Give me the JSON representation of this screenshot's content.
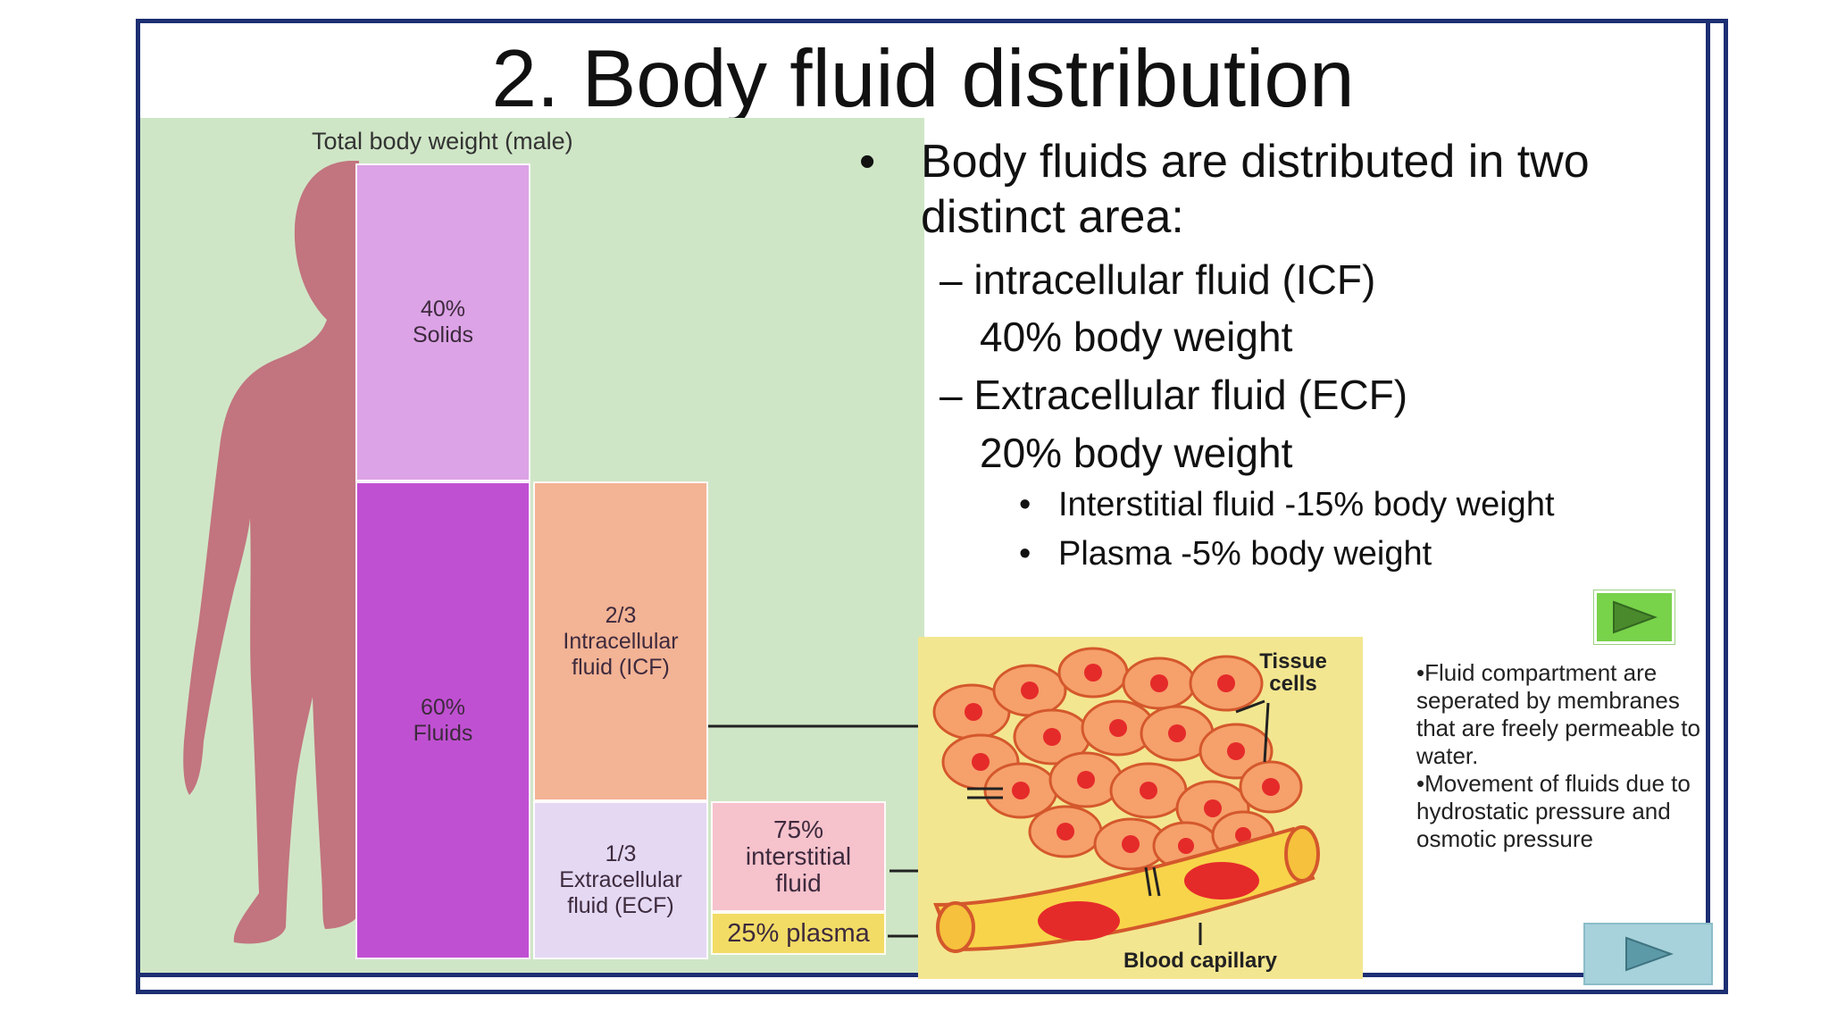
{
  "slide": {
    "title": "2. Body fluid distribution",
    "diagram": {
      "total_label": "Total body weight (male)",
      "solids": "40%\nSolids",
      "fluids": "60%\nFluids",
      "icf": "2/3\nIntracellular\nfluid (ICF)",
      "ecf": "1/3\nExtracellular\nfluid (ECF)",
      "interstitial": "75%\ninterstitial\nfluid",
      "plasma": "25% plasma",
      "tissue_cells_label": "Tissue\ncells",
      "capillary_label": "Blood capillary"
    },
    "bullets": {
      "main": "Body fluids are distributed in two distinct area:",
      "icf_heading": "– intracellular fluid (ICF)",
      "icf_value": "40% body weight",
      "ecf_heading": "– Extracellular fluid (ECF)",
      "ecf_value": "20% body weight",
      "interstitial": "Interstitial fluid -15% body weight",
      "plasma": "Plasma -5% body weight"
    },
    "note": {
      "line1": "•Fluid compartment are seperated by membranes that are freely permeable to water.",
      "line2": "•Movement of fluids due to hydrostatic pressure and osmotic pressure"
    },
    "colors": {
      "border": "#1d2f73",
      "diagram_bg": "#cfe6c6",
      "silhouette": "#c2747f",
      "solids": "#dca3e6",
      "fluids": "#c050d2",
      "icf": "#f3b395",
      "ecf": "#e4d8f3",
      "interstitial": "#f6c2cc",
      "plasma": "#f2dc66",
      "green_button": "#78d24a",
      "blue_button": "#a7d2db"
    },
    "icons": [
      "play-green-icon",
      "play-blue-icon"
    ]
  }
}
